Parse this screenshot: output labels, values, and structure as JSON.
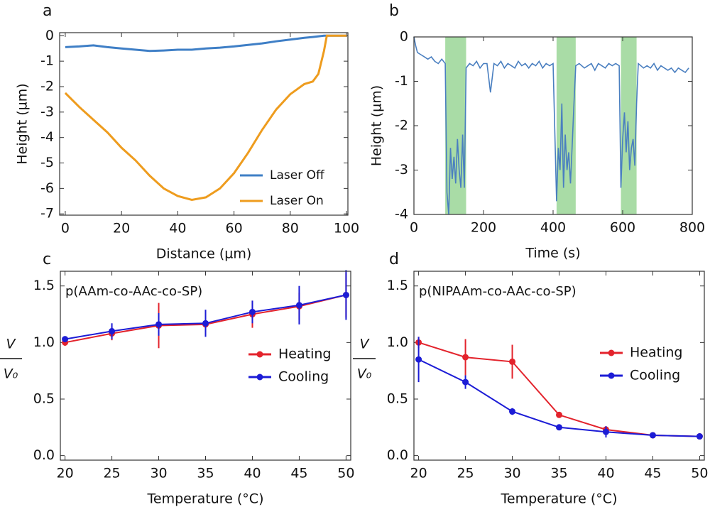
{
  "chart_data": [
    {
      "type": "line",
      "panel_label": "a",
      "xlabel": "Distance (µm)",
      "ylabel": "Height (µm)",
      "xlim": [
        -2,
        100.5
      ],
      "ylim": [
        -7.05,
        0.12
      ],
      "xticks": [
        0,
        20,
        40,
        60,
        80,
        100
      ],
      "yticks": [
        0,
        -1,
        -2,
        -3,
        -4,
        -5,
        -6,
        -7
      ],
      "legend": "lower right",
      "series": [
        {
          "name": "Laser Off",
          "color": "#3f7fc6",
          "x": [
            0,
            5,
            10,
            15,
            20,
            25,
            30,
            35,
            40,
            45,
            50,
            55,
            60,
            65,
            70,
            75,
            80,
            85,
            88,
            92,
            100
          ],
          "values": [
            -0.45,
            -0.42,
            -0.38,
            -0.45,
            -0.5,
            -0.55,
            -0.6,
            -0.58,
            -0.55,
            -0.55,
            -0.5,
            -0.47,
            -0.42,
            -0.36,
            -0.3,
            -0.22,
            -0.15,
            -0.08,
            -0.05,
            0,
            0
          ]
        },
        {
          "name": "Laser On",
          "color": "#ee9c1e",
          "x": [
            0,
            5,
            10,
            15,
            20,
            25,
            30,
            35,
            40,
            45,
            50,
            55,
            60,
            65,
            70,
            75,
            80,
            85,
            88,
            90,
            92,
            93,
            100
          ],
          "values": [
            -2.25,
            -2.8,
            -3.3,
            -3.8,
            -4.4,
            -4.9,
            -5.5,
            -6.0,
            -6.3,
            -6.45,
            -6.35,
            -6.0,
            -5.4,
            -4.6,
            -3.7,
            -2.9,
            -2.3,
            -1.9,
            -1.8,
            -1.5,
            -0.6,
            0,
            0
          ]
        }
      ]
    },
    {
      "type": "line",
      "panel_label": "b",
      "xlabel": "Time (s)",
      "ylabel": "Height (µm)",
      "xlim": [
        0,
        800
      ],
      "ylim": [
        -4,
        0
      ],
      "xticks": [
        0,
        200,
        400,
        600,
        800
      ],
      "yticks": [
        0,
        -1,
        -2,
        -3,
        -4
      ],
      "shaded": [
        [
          90,
          150
        ],
        [
          410,
          465
        ],
        [
          595,
          640
        ]
      ],
      "shade_color": "#a9dca6",
      "series": [
        {
          "color": "#4a7fc0",
          "x": [
            0,
            5,
            10,
            20,
            30,
            40,
            50,
            60,
            70,
            80,
            90,
            95,
            100,
            105,
            110,
            115,
            120,
            125,
            130,
            135,
            140,
            145,
            150,
            160,
            170,
            180,
            190,
            200,
            210,
            220,
            230,
            240,
            250,
            260,
            270,
            280,
            290,
            300,
            310,
            320,
            330,
            340,
            350,
            360,
            370,
            380,
            390,
            400,
            410,
            415,
            420,
            425,
            430,
            435,
            440,
            445,
            450,
            455,
            460,
            465,
            475,
            490,
            500,
            510,
            520,
            530,
            540,
            550,
            560,
            570,
            580,
            590,
            595,
            600,
            605,
            610,
            615,
            620,
            625,
            630,
            635,
            640,
            645,
            660,
            670,
            680,
            690,
            700,
            710,
            720,
            730,
            740,
            750,
            760,
            770,
            780,
            790
          ],
          "values": [
            0,
            -0.2,
            -0.35,
            -0.4,
            -0.45,
            -0.5,
            -0.45,
            -0.55,
            -0.6,
            -0.5,
            -0.6,
            -3.5,
            -4.0,
            -2.5,
            -3.2,
            -2.7,
            -3.3,
            -2.3,
            -3.0,
            -3.4,
            -2.2,
            -3.4,
            -0.7,
            -0.6,
            -0.65,
            -0.55,
            -0.7,
            -0.6,
            -0.6,
            -1.25,
            -0.6,
            -0.65,
            -0.55,
            -0.7,
            -0.6,
            -0.65,
            -0.7,
            -0.55,
            -0.65,
            -0.6,
            -0.7,
            -0.6,
            -0.65,
            -0.55,
            -0.7,
            -0.6,
            -0.65,
            -0.6,
            -3.7,
            -2.5,
            -3.0,
            -1.5,
            -3.4,
            -2.2,
            -3.0,
            -2.6,
            -3.3,
            -2.4,
            -1.5,
            -0.65,
            -0.6,
            -0.7,
            -0.65,
            -0.6,
            -0.75,
            -0.6,
            -0.65,
            -0.7,
            -0.6,
            -0.65,
            -0.6,
            -0.65,
            -3.4,
            -2.3,
            -1.7,
            -2.6,
            -1.9,
            -3.0,
            -2.5,
            -2.3,
            -2.9,
            -1.5,
            -0.6,
            -0.7,
            -0.65,
            -0.7,
            -0.6,
            -0.75,
            -0.65,
            -0.7,
            -0.75,
            -0.7,
            -0.8,
            -0.7,
            -0.75,
            -0.8,
            -0.7
          ]
        }
      ]
    },
    {
      "type": "errorline",
      "panel_label": "c",
      "xlabel": "Temperature (°C)",
      "ylabel_numerator": "V",
      "ylabel_denominator": "V₀",
      "annotation": "p(AAm-co-AAc-co-SP)",
      "legend": "center right",
      "xlim": [
        19.5,
        50.5
      ],
      "ylim": [
        -0.04,
        1.63
      ],
      "xticks": [
        20,
        25,
        30,
        35,
        40,
        45,
        50
      ],
      "yticks": [
        {
          "value": 0,
          "label": "0.0"
        },
        0.5,
        {
          "value": 1,
          "label": "1.0"
        },
        1.5
      ],
      "x": [
        20,
        25,
        30,
        35,
        40,
        45,
        50
      ],
      "series": [
        {
          "name": "Heating",
          "color": "#e3232c",
          "values": [
            1.0,
            1.08,
            1.15,
            1.16,
            1.25,
            1.32,
            1.42
          ],
          "errors": [
            0.03,
            0.06,
            0.2,
            0.08,
            0.12,
            0.12,
            0.2
          ]
        },
        {
          "name": "Cooling",
          "color": "#1c1cd6",
          "values": [
            1.03,
            1.1,
            1.16,
            1.17,
            1.27,
            1.33,
            1.42
          ],
          "errors": [
            0.02,
            0.07,
            0.1,
            0.12,
            0.1,
            0.17,
            0.22
          ]
        }
      ]
    },
    {
      "type": "errorline",
      "panel_label": "d",
      "xlabel": "Temperature (°C)",
      "ylabel_numerator": "V",
      "ylabel_denominator": "V₀",
      "annotation": "p(NIPAAm-co-AAc-co-SP)",
      "legend": "center right",
      "xlim": [
        19.5,
        50.5
      ],
      "ylim": [
        -0.04,
        1.63
      ],
      "xticks": [
        20,
        25,
        30,
        35,
        40,
        45,
        50
      ],
      "yticks": [
        {
          "value": 0,
          "label": "0.0"
        },
        0.5,
        {
          "value": 1,
          "label": "1.0"
        },
        1.5
      ],
      "x": [
        20,
        25,
        30,
        35,
        40,
        45,
        50
      ],
      "series": [
        {
          "name": "Heating",
          "color": "#e3232c",
          "values": [
            1.0,
            0.87,
            0.83,
            0.36,
            0.23,
            0.18,
            0.17
          ],
          "errors": [
            0.05,
            0.16,
            0.15,
            0.02,
            0.03,
            0.02,
            0.02
          ]
        },
        {
          "name": "Cooling",
          "color": "#1c1cd6",
          "values": [
            0.85,
            0.65,
            0.39,
            0.25,
            0.21,
            0.18,
            0.17
          ],
          "errors": [
            0.2,
            0.06,
            0.03,
            0.01,
            0.05,
            0.02,
            0.01
          ]
        }
      ]
    }
  ]
}
